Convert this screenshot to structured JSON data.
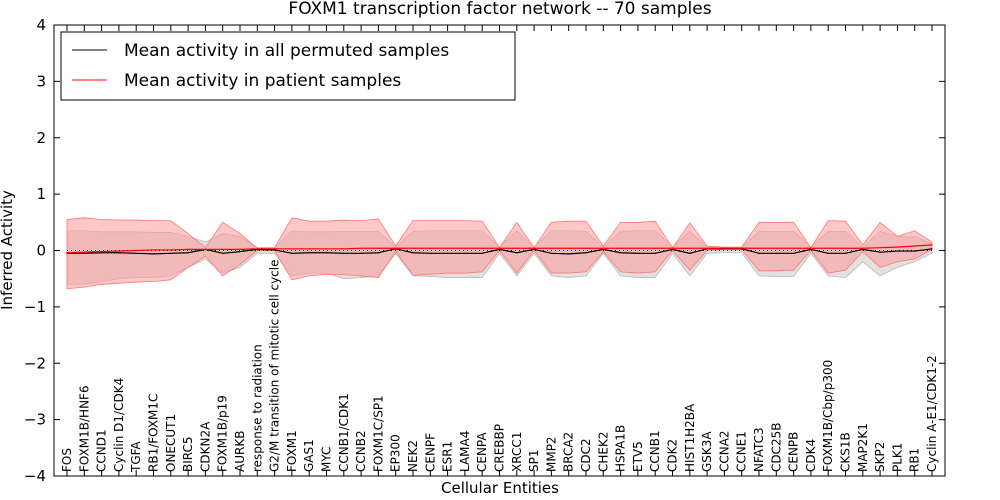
{
  "chart_data": {
    "type": "line",
    "title": "FOXM1 transcription factor network -- 70 samples",
    "xlabel": "Cellular Entities",
    "ylabel": "Inferred Activity",
    "ylim": [
      -4,
      4
    ],
    "yticks": [
      4,
      3,
      2,
      1,
      0,
      -1,
      -2,
      -3,
      -4
    ],
    "ytick_labels": [
      "4",
      "3",
      "2",
      "1",
      "0",
      "−1",
      "−2",
      "−3",
      "−4"
    ],
    "legend_position": "upper-left",
    "categories": [
      "FOS",
      "FOXM1B/HNF6",
      "CCND1",
      "Cyclin D1/CDK4",
      "TGFA",
      "RB1/FOXM1C",
      "ONECUT1",
      "BIRC5",
      "CDKN2A",
      "FOXM1B/p19",
      "AURKB",
      "response to radiation",
      "G2/M transition of mitotic cell cycle",
      "FOXM1",
      "GAS1",
      "MYC",
      "CCNB1/CDK1",
      "CCNB2",
      "FOXM1C/SP1",
      "EP300",
      "NEK2",
      "CENPF",
      "ESR1",
      "LAMA4",
      "CENPA",
      "CREBBP",
      "XRCC1",
      "SP1",
      "MMP2",
      "BRCA2",
      "CDC2",
      "CHEK2",
      "HSPA1B",
      "ETV5",
      "CCNB1",
      "CDK2",
      "HIST1H2BA",
      "GSK3A",
      "CCNA2",
      "CCNE1",
      "NFATC3",
      "CDC25B",
      "CENPB",
      "CDK4",
      "FOXM1B/Cbp/p300",
      "CKS1B",
      "MAP2K1",
      "SKP2",
      "PLK1",
      "RB1",
      "Cyclin A-E1/CDK1-2"
    ],
    "series": [
      {
        "name": "Mean activity in all permuted samples",
        "color": "#000000",
        "band_color": "#c8c8c8",
        "values": [
          -0.05,
          -0.05,
          -0.04,
          -0.04,
          -0.05,
          -0.06,
          -0.05,
          -0.04,
          0.02,
          -0.05,
          -0.02,
          0.02,
          0.01,
          -0.05,
          -0.04,
          -0.04,
          -0.05,
          -0.05,
          -0.04,
          0.03,
          -0.04,
          -0.05,
          -0.05,
          -0.05,
          -0.05,
          0.02,
          -0.04,
          0.02,
          -0.05,
          -0.06,
          -0.04,
          0.02,
          -0.04,
          -0.05,
          -0.05,
          0.02,
          -0.05,
          0.03,
          0.03,
          0.03,
          -0.05,
          -0.05,
          -0.05,
          0.02,
          -0.05,
          -0.05,
          0.02,
          -0.03,
          -0.01,
          -0.01,
          0.03
        ],
        "band_low": [
          -0.6,
          -0.6,
          -0.55,
          -0.5,
          -0.48,
          -0.48,
          -0.45,
          -0.3,
          -0.15,
          -0.4,
          -0.3,
          -0.05,
          -0.05,
          -0.45,
          -0.4,
          -0.4,
          -0.5,
          -0.48,
          -0.45,
          -0.05,
          -0.45,
          -0.46,
          -0.48,
          -0.48,
          -0.48,
          -0.05,
          -0.45,
          -0.05,
          -0.45,
          -0.48,
          -0.45,
          -0.05,
          -0.45,
          -0.48,
          -0.48,
          -0.05,
          -0.45,
          -0.05,
          -0.04,
          -0.04,
          -0.45,
          -0.46,
          -0.46,
          -0.05,
          -0.45,
          -0.48,
          -0.2,
          -0.45,
          -0.3,
          -0.2,
          -0.05
        ],
        "band_high": [
          0.35,
          0.35,
          0.33,
          0.33,
          0.33,
          0.32,
          0.32,
          0.25,
          0.15,
          0.3,
          0.25,
          0.05,
          0.05,
          0.35,
          0.33,
          0.33,
          0.34,
          0.34,
          0.34,
          0.06,
          0.34,
          0.35,
          0.35,
          0.35,
          0.35,
          0.06,
          0.35,
          0.06,
          0.35,
          0.35,
          0.34,
          0.06,
          0.34,
          0.35,
          0.35,
          0.06,
          0.34,
          0.06,
          0.05,
          0.05,
          0.34,
          0.34,
          0.34,
          0.06,
          0.34,
          0.34,
          0.06,
          0.34,
          0.25,
          0.25,
          0.12
        ]
      },
      {
        "name": "Mean activity in patient samples",
        "color": "#ff0000",
        "band_color": "#ff9999",
        "values": [
          -0.04,
          -0.03,
          -0.02,
          -0.01,
          0.0,
          0.01,
          0.01,
          0.02,
          0.02,
          0.02,
          0.02,
          0.03,
          0.03,
          0.03,
          0.03,
          0.03,
          0.03,
          0.04,
          0.04,
          0.04,
          0.04,
          0.04,
          0.04,
          0.04,
          0.04,
          0.04,
          0.04,
          0.04,
          0.04,
          0.04,
          0.04,
          0.04,
          0.04,
          0.04,
          0.04,
          0.04,
          0.04,
          0.04,
          0.04,
          0.04,
          0.04,
          0.04,
          0.04,
          0.04,
          0.04,
          0.04,
          0.04,
          0.05,
          0.06,
          0.08,
          0.1
        ],
        "band_low": [
          -0.68,
          -0.65,
          -0.6,
          -0.58,
          -0.56,
          -0.55,
          -0.52,
          -0.3,
          -0.1,
          -0.45,
          -0.25,
          0.0,
          0.0,
          -0.52,
          -0.45,
          -0.42,
          -0.43,
          -0.45,
          -0.48,
          -0.02,
          -0.44,
          -0.42,
          -0.4,
          -0.4,
          -0.38,
          0.0,
          -0.4,
          0.0,
          -0.4,
          -0.4,
          -0.38,
          -0.02,
          -0.38,
          -0.4,
          -0.38,
          0.0,
          -0.35,
          0.0,
          0.02,
          0.02,
          -0.36,
          -0.36,
          -0.35,
          0.0,
          -0.4,
          -0.35,
          -0.02,
          -0.3,
          -0.2,
          -0.15,
          0.02
        ],
        "band_high": [
          0.55,
          0.58,
          0.55,
          0.54,
          0.54,
          0.53,
          0.53,
          0.3,
          0.05,
          0.5,
          0.3,
          0.04,
          0.05,
          0.58,
          0.52,
          0.52,
          0.54,
          0.53,
          0.56,
          0.08,
          0.53,
          0.53,
          0.53,
          0.53,
          0.52,
          0.05,
          0.5,
          0.05,
          0.5,
          0.52,
          0.52,
          0.08,
          0.5,
          0.5,
          0.52,
          0.05,
          0.49,
          0.08,
          0.06,
          0.06,
          0.5,
          0.5,
          0.5,
          0.05,
          0.53,
          0.52,
          0.1,
          0.5,
          0.25,
          0.35,
          0.15
        ]
      }
    ]
  }
}
